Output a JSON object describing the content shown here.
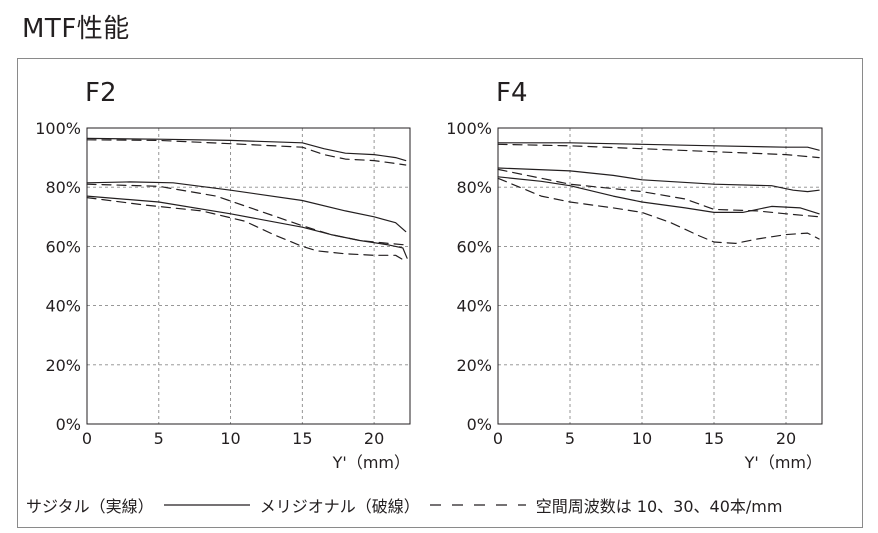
{
  "page": {
    "title": "MTF性能"
  },
  "legend": {
    "sagittal": "サジタル（実線）",
    "meridional": "メリジオナル（破線）",
    "frequency": "空間周波数は 10、30、40本/mm"
  },
  "chart_data": [
    {
      "type": "line",
      "title": "F2",
      "xlabel": "Y'（mm）",
      "xlim": [
        0,
        22.5
      ],
      "ylim": [
        0,
        100
      ],
      "x_ticks": [
        0,
        5,
        10,
        15,
        20
      ],
      "y_ticks": [
        0,
        20,
        40,
        60,
        80,
        100
      ],
      "y_tick_labels": [
        "0%",
        "20%",
        "40%",
        "60%",
        "80%",
        "100%"
      ],
      "grid": true,
      "series": [
        {
          "style": "solid",
          "points": [
            [
              0,
              96.5
            ],
            [
              5,
              96.2
            ],
            [
              10,
              95.8
            ],
            [
              15,
              95
            ],
            [
              16.5,
              93
            ],
            [
              18,
              91.5
            ],
            [
              20,
              91
            ],
            [
              21.5,
              90
            ],
            [
              22.2,
              89
            ]
          ]
        },
        {
          "style": "dashed",
          "points": [
            [
              0,
              96
            ],
            [
              5,
              95.8
            ],
            [
              10,
              94.7
            ],
            [
              15,
              93.5
            ],
            [
              16.5,
              91
            ],
            [
              18,
              89.5
            ],
            [
              20,
              89
            ],
            [
              21.5,
              88
            ],
            [
              22.2,
              87.5
            ]
          ]
        },
        {
          "style": "solid",
          "points": [
            [
              0,
              81.5
            ],
            [
              3,
              81.8
            ],
            [
              6,
              81.5
            ],
            [
              10,
              79
            ],
            [
              15,
              75.5
            ],
            [
              18,
              72
            ],
            [
              20,
              70
            ],
            [
              21.5,
              68
            ],
            [
              22.2,
              65
            ]
          ]
        },
        {
          "style": "dashed",
          "points": [
            [
              0,
              81
            ],
            [
              5,
              80.3
            ],
            [
              9,
              77
            ],
            [
              12,
              72
            ],
            [
              15,
              67
            ],
            [
              17,
              64
            ],
            [
              19,
              62
            ],
            [
              21,
              61
            ],
            [
              22.2,
              60.5
            ]
          ]
        },
        {
          "style": "solid",
          "points": [
            [
              0,
              77
            ],
            [
              5,
              75
            ],
            [
              10,
              71
            ],
            [
              15,
              66.5
            ],
            [
              17,
              64
            ],
            [
              19,
              62
            ],
            [
              21,
              60.5
            ],
            [
              22,
              59.5
            ],
            [
              22.3,
              56
            ]
          ]
        },
        {
          "style": "dashed",
          "points": [
            [
              0,
              76.5
            ],
            [
              4,
              74
            ],
            [
              8,
              72
            ],
            [
              11,
              68.5
            ],
            [
              13,
              64
            ],
            [
              15,
              60
            ],
            [
              16,
              58.5
            ],
            [
              18,
              57.5
            ],
            [
              20,
              57
            ],
            [
              21.5,
              57
            ],
            [
              22.2,
              55
            ]
          ]
        }
      ]
    },
    {
      "type": "line",
      "title": "F4",
      "xlabel": "Y'（mm）",
      "xlim": [
        0,
        22.5
      ],
      "ylim": [
        0,
        100
      ],
      "x_ticks": [
        0,
        5,
        10,
        15,
        20
      ],
      "y_ticks": [
        0,
        20,
        40,
        60,
        80,
        100
      ],
      "y_tick_labels": [
        "0%",
        "20%",
        "40%",
        "60%",
        "80%",
        "100%"
      ],
      "grid": true,
      "series": [
        {
          "style": "solid",
          "points": [
            [
              0,
              95
            ],
            [
              5,
              95
            ],
            [
              10,
              94.5
            ],
            [
              15,
              94
            ],
            [
              20,
              93.5
            ],
            [
              21.5,
              93.5
            ],
            [
              22.3,
              92.5
            ]
          ]
        },
        {
          "style": "dashed",
          "points": [
            [
              0,
              94.5
            ],
            [
              5,
              94
            ],
            [
              10,
              93
            ],
            [
              15,
              92
            ],
            [
              20,
              91
            ],
            [
              22.3,
              90
            ]
          ]
        },
        {
          "style": "solid",
          "points": [
            [
              0,
              86.5
            ],
            [
              5,
              85.5
            ],
            [
              8,
              84
            ],
            [
              10,
              82.5
            ],
            [
              15,
              81
            ],
            [
              19,
              80.5
            ],
            [
              20.5,
              79
            ],
            [
              21.5,
              78.5
            ],
            [
              22.3,
              79
            ]
          ]
        },
        {
          "style": "dashed",
          "points": [
            [
              0,
              86
            ],
            [
              5,
              81
            ],
            [
              10,
              78.5
            ],
            [
              13,
              76
            ],
            [
              15,
              72.5
            ],
            [
              18,
              72
            ],
            [
              20,
              71
            ],
            [
              22.3,
              70
            ]
          ]
        },
        {
          "style": "solid",
          "points": [
            [
              0,
              83.5
            ],
            [
              3,
              82
            ],
            [
              5,
              80.5
            ],
            [
              8,
              77
            ],
            [
              10,
              75
            ],
            [
              13,
              73
            ],
            [
              15,
              71.5
            ],
            [
              17,
              71.5
            ],
            [
              19,
              73.5
            ],
            [
              21,
              73
            ],
            [
              22.3,
              71
            ]
          ]
        },
        {
          "style": "dashed",
          "points": [
            [
              0,
              83
            ],
            [
              3,
              77
            ],
            [
              5,
              75
            ],
            [
              8,
              73
            ],
            [
              10,
              71.5
            ],
            [
              12,
              68
            ],
            [
              14,
              63.5
            ],
            [
              15,
              61.5
            ],
            [
              16.5,
              61
            ],
            [
              18,
              62.5
            ],
            [
              20,
              64
            ],
            [
              21.5,
              64.5
            ],
            [
              22.3,
              62.5
            ]
          ]
        }
      ]
    }
  ]
}
